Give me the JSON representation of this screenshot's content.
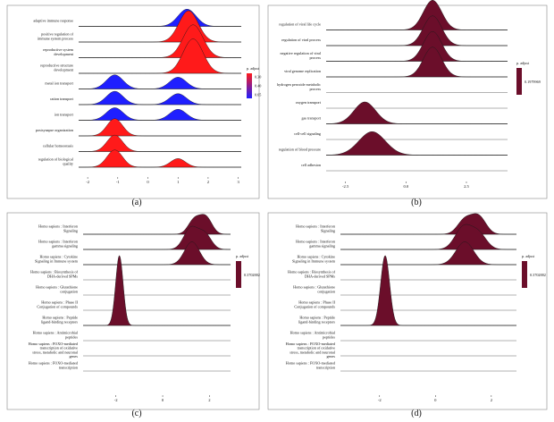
{
  "colors": {
    "red": "#ff1a1a",
    "blue": "#1f1fff",
    "maroon": "#6b0e2a",
    "axis": "#333333",
    "baseline": "#555555"
  },
  "chart_data": [
    {
      "panel": "(a)",
      "type": "ridgeline",
      "xlim": [
        -2.3,
        3.1
      ],
      "xticks": [
        "-2",
        "-1",
        "0",
        "1",
        "2",
        "3"
      ],
      "legend": {
        "title": "p. adjust",
        "type": "gradient",
        "labels": [
          "0.30",
          "0.40",
          "0.65"
        ],
        "colors": [
          "#ff1a1a",
          "#1f1fff"
        ]
      },
      "categories": [
        "adaptive immune response",
        "positive regulation of immune system process",
        "reproductive system development",
        "reproductive structure development",
        "metal ion transport",
        "cation transport",
        "ion transport",
        "postsynapse organization",
        "cellular homeostasis",
        "regulation of biological quality"
      ],
      "series": [
        {
          "peaks": [
            {
              "mu": 1.3,
              "sd": 0.3,
              "h": 1.1
            }
          ],
          "color": "blue"
        },
        {
          "peaks": [
            {
              "mu": 1.35,
              "sd": 0.32,
              "h": 2.0
            }
          ],
          "color": "red"
        },
        {
          "peaks": [
            {
              "mu": 1.5,
              "sd": 0.33,
              "h": 2.1
            }
          ],
          "color": "red"
        },
        {
          "peaks": [
            {
              "mu": 1.5,
              "sd": 0.33,
              "h": 2.2
            }
          ],
          "color": "red"
        },
        {
          "peaks": [
            {
              "mu": -1.1,
              "sd": 0.28,
              "h": 0.9
            },
            {
              "mu": 1.0,
              "sd": 0.28,
              "h": 0.75
            }
          ],
          "color": "blue"
        },
        {
          "peaks": [
            {
              "mu": -1.1,
              "sd": 0.28,
              "h": 0.85
            },
            {
              "mu": 1.0,
              "sd": 0.28,
              "h": 0.7
            }
          ],
          "color": "blue"
        },
        {
          "peaks": [
            {
              "mu": -1.1,
              "sd": 0.28,
              "h": 0.8
            },
            {
              "mu": 1.0,
              "sd": 0.28,
              "h": 0.7
            }
          ],
          "color": "blue"
        },
        {
          "peaks": [
            {
              "mu": -1.1,
              "sd": 0.26,
              "h": 1.1
            }
          ],
          "color": "red"
        },
        {
          "peaks": [
            {
              "mu": -1.1,
              "sd": 0.26,
              "h": 1.05
            }
          ],
          "color": "red"
        },
        {
          "peaks": [
            {
              "mu": -1.1,
              "sd": 0.26,
              "h": 1.1
            },
            {
              "mu": 1.0,
              "sd": 0.25,
              "h": 0.55
            }
          ],
          "color": "red"
        }
      ]
    },
    {
      "panel": "(b)",
      "type": "ridgeline",
      "xlim": [
        -3.3,
        4.2
      ],
      "xticks": [
        "-2.5",
        "0.0",
        "2.5"
      ],
      "legend": {
        "title": "p. adjust",
        "type": "single",
        "labels": [
          "0.1979969"
        ],
        "colors": [
          "#6b0e2a"
        ]
      },
      "categories": [
        "regulation of viral life cycle",
        "regulation of viral process",
        "negative regulation of viral process",
        "viral genome replication",
        "hydrogen peroxide metabolic process",
        "oxygen transport",
        "gas transport",
        "cell-cell signaling",
        "regulation of blood pressure",
        "cell adhesion"
      ],
      "series": [
        {
          "peaks": [
            {
              "mu": 1.1,
              "sd": 0.38,
              "h": 1.9
            }
          ]
        },
        {
          "peaks": [
            {
              "mu": 1.1,
              "sd": 0.38,
              "h": 1.9
            }
          ]
        },
        {
          "peaks": [
            {
              "mu": 1.1,
              "sd": 0.38,
              "h": 1.9
            }
          ]
        },
        {
          "peaks": [
            {
              "mu": 1.1,
              "sd": 0.38,
              "h": 1.9
            }
          ]
        },
        {
          "peaks": []
        },
        {
          "peaks": []
        },
        {
          "peaks": [
            {
              "mu": -1.7,
              "sd": 0.45,
              "h": 1.4
            }
          ]
        },
        {
          "peaks": []
        },
        {
          "peaks": [
            {
              "mu": -1.4,
              "sd": 0.55,
              "h": 1.5
            }
          ]
        },
        {
          "peaks": []
        }
      ]
    },
    {
      "panel": "(c)",
      "type": "ridgeline",
      "xlim": [
        -3.4,
        2.9
      ],
      "xticks": [
        "-2",
        "0",
        "2"
      ],
      "legend": {
        "title": "p. adjust",
        "type": "single",
        "labels": [
          "0.3702882"
        ],
        "colors": [
          "#6b0e2a"
        ]
      },
      "categories": [
        "Homo sapiens : Interferon Signaling",
        "Homo sapiens : Interferon gamma signaling",
        "Homo sapiens : Cytokine Signaling in Immune system",
        "Homo sapiens : Biosynthesis of DHA-derived SPMs",
        "Homo sapiens : Glutathione conjugation",
        "Homo sapiens : Phase II Conjugation of compounds",
        "Homo sapiens : Peptide ligand-binding receptors",
        "Homo sapiens : Antimicrobial peptides",
        "Homo sapiens : FOXO-mediated transcription of oxidative stress, metabolic and neuronal genes",
        "Homo sapiens : FOXO-mediated transcription"
      ],
      "series": [
        {
          "peaks": [
            {
              "mu": 1.35,
              "sd": 0.26,
              "h": 0.95
            },
            {
              "mu": 1.85,
              "sd": 0.26,
              "h": 1.1
            }
          ]
        },
        {
          "peaks": [
            {
              "mu": 1.2,
              "sd": 0.3,
              "h": 1.4
            },
            {
              "mu": 1.8,
              "sd": 0.28,
              "h": 1.0
            }
          ]
        },
        {
          "peaks": [
            {
              "mu": 1.25,
              "sd": 0.32,
              "h": 1.5
            }
          ]
        },
        {
          "peaks": []
        },
        {
          "peaks": []
        },
        {
          "peaks": []
        },
        {
          "peaks": [
            {
              "mu": -1.85,
              "sd": 0.16,
              "h": 4.6
            }
          ]
        },
        {
          "peaks": []
        },
        {
          "peaks": []
        },
        {
          "peaks": []
        }
      ]
    },
    {
      "panel": "(d)",
      "type": "ridgeline",
      "xlim": [
        -3.4,
        2.9
      ],
      "xticks": [
        "-2",
        "0",
        "2"
      ],
      "legend": {
        "title": "p. adjust",
        "type": "single",
        "labels": [
          "0.3702882"
        ],
        "colors": [
          "#6b0e2a"
        ]
      },
      "categories": [
        "Homo sapiens : Interferon Signaling",
        "Homo sapiens : Interferon gamma signaling",
        "Homo sapiens : Cytokine Signaling in Immune system",
        "Homo sapiens : Biosynthesis of DHA-derived SPMs",
        "Homo sapiens : Glutathione conjugation",
        "Homo sapiens : Phase II Conjugation of compounds",
        "Homo sapiens : Peptide ligand-binding receptors",
        "Homo sapiens : Antimicrobial peptides",
        "Homo sapiens : FOXO-mediated transcription of oxidative stress, metabolic and neuronal genes",
        "Homo sapiens : FOXO-mediated transcription"
      ],
      "series": [
        {
          "peaks": [
            {
              "mu": 1.05,
              "sd": 0.26,
              "h": 0.95
            },
            {
              "mu": 1.55,
              "sd": 0.26,
              "h": 1.15
            }
          ]
        },
        {
          "peaks": [
            {
              "mu": 1.0,
              "sd": 0.3,
              "h": 1.45
            },
            {
              "mu": 1.55,
              "sd": 0.28,
              "h": 1.0
            }
          ]
        },
        {
          "peaks": [
            {
              "mu": 1.05,
              "sd": 0.32,
              "h": 1.5
            }
          ]
        },
        {
          "peaks": []
        },
        {
          "peaks": []
        },
        {
          "peaks": []
        },
        {
          "peaks": [
            {
              "mu": -1.8,
              "sd": 0.16,
              "h": 4.6
            }
          ]
        },
        {
          "peaks": []
        },
        {
          "peaks": []
        },
        {
          "peaks": []
        }
      ]
    }
  ]
}
